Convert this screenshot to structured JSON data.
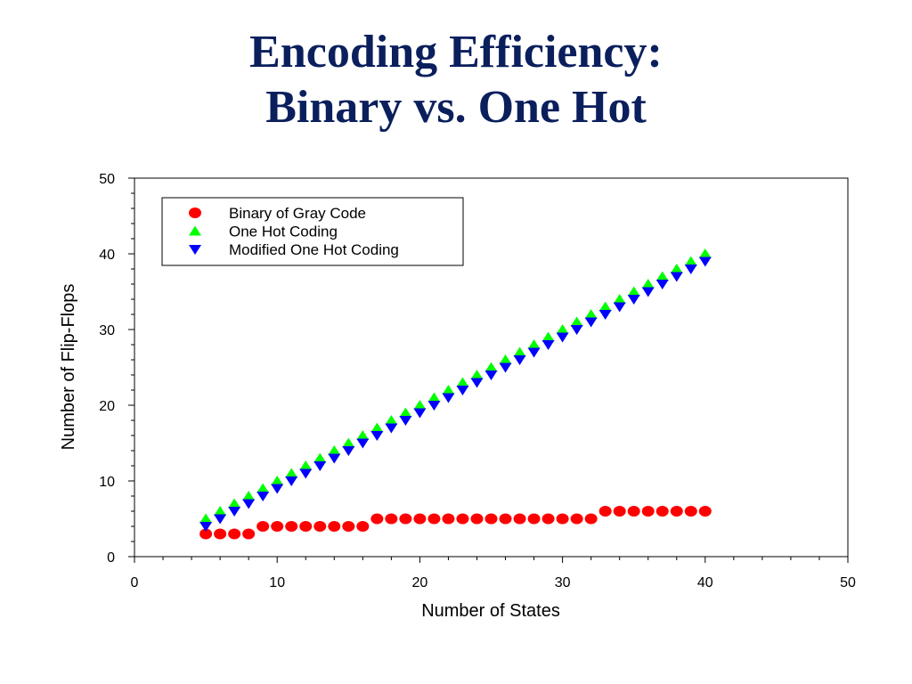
{
  "slide": {
    "title_line1": "Encoding Efficiency:",
    "title_line2": "Binary vs. One Hot"
  },
  "chart_data": {
    "type": "scatter",
    "xlabel": "Number of States",
    "ylabel": "Number of Flip-Flops",
    "xlim": [
      0,
      50
    ],
    "ylim": [
      0,
      50
    ],
    "xticks": [
      0,
      10,
      20,
      30,
      40,
      50
    ],
    "yticks": [
      0,
      10,
      20,
      30,
      40,
      50
    ],
    "grid": false,
    "legend_position": "top-left",
    "x": [
      5,
      6,
      7,
      8,
      9,
      10,
      11,
      12,
      13,
      14,
      15,
      16,
      17,
      18,
      19,
      20,
      21,
      22,
      23,
      24,
      25,
      26,
      27,
      28,
      29,
      30,
      31,
      32,
      33,
      34,
      35,
      36,
      37,
      38,
      39,
      40
    ],
    "series": [
      {
        "name": "Binary of Gray Code",
        "marker": "circle",
        "color": "#ff0000",
        "values": [
          3,
          3,
          3,
          3,
          4,
          4,
          4,
          4,
          4,
          4,
          4,
          4,
          5,
          5,
          5,
          5,
          5,
          5,
          5,
          5,
          5,
          5,
          5,
          5,
          5,
          5,
          5,
          5,
          6,
          6,
          6,
          6,
          6,
          6,
          6,
          6
        ]
      },
      {
        "name": "One Hot Coding",
        "marker": "triangle-up",
        "color": "#00ff00",
        "values": [
          5,
          6,
          7,
          8,
          9,
          10,
          11,
          12,
          13,
          14,
          15,
          16,
          17,
          18,
          19,
          20,
          21,
          22,
          23,
          24,
          25,
          26,
          27,
          28,
          29,
          30,
          31,
          32,
          33,
          34,
          35,
          36,
          37,
          38,
          39,
          40
        ]
      },
      {
        "name": "Modified One Hot Coding",
        "marker": "triangle-down",
        "color": "#0000ff",
        "values": [
          4,
          5,
          6,
          7,
          8,
          9,
          10,
          11,
          12,
          13,
          14,
          15,
          16,
          17,
          18,
          19,
          20,
          21,
          22,
          23,
          24,
          25,
          26,
          27,
          28,
          29,
          30,
          31,
          32,
          33,
          34,
          35,
          36,
          37,
          38,
          39
        ]
      }
    ]
  }
}
